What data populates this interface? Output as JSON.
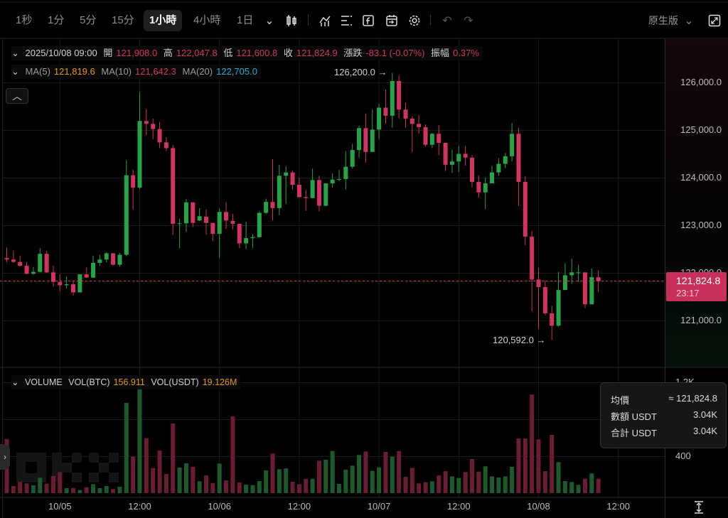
{
  "toolbar": {
    "intervals": [
      "1秒",
      "1分",
      "5分",
      "15分",
      "1小時",
      "4小時",
      "1日"
    ],
    "active_interval": "1小時",
    "version_select": "原生版"
  },
  "legend": {
    "datetime": "2025/10/08 09:00",
    "open_label": "開",
    "open": "121,908.0",
    "high_label": "高",
    "high": "122,047.8",
    "low_label": "低",
    "low": "121,600.8",
    "close_label": "收",
    "close": "121,824.9",
    "change_label": "漲跌",
    "change": "-83.1 (-0.07%)",
    "amp_label": "振幅",
    "amp": "0.37%",
    "ma5_label": "MA(5)",
    "ma5": "121,819.6",
    "ma10_label": "MA(10)",
    "ma10": "121,642.3",
    "ma20_label": "MA(20)",
    "ma20": "122,705.0"
  },
  "volume_legend": {
    "title": "VOLUME",
    "btc_label": "VOL(BTC)",
    "btc": "156.911",
    "usdt_label": "VOL(USDT)",
    "usdt": "19.126M"
  },
  "annotations": {
    "high": "126,200.0 →",
    "low": "120,592.0 →"
  },
  "current_price": {
    "price": "121,824.8",
    "countdown": "23:17"
  },
  "tooltip": {
    "avg_label": "均價",
    "avg": "≈ 121,824.8",
    "amount_label": "數額 USDT",
    "amount": "3.04K",
    "total_label": "合計 USDT",
    "total": "3.04K"
  },
  "colors": {
    "up": "#27a446",
    "down": "#d1355f",
    "vol_up": "#1c5a2c",
    "vol_down": "#6a1c33"
  },
  "chart_data": {
    "type": "candlestick",
    "interval": "1h",
    "start": "2025/10/04 16:00",
    "price_ticks": [
      "121,000.0",
      "122,000.0",
      "123,000.0",
      "124,000.0",
      "125,000.0",
      "126,000.0"
    ],
    "price_tick_values": [
      121000,
      122000,
      123000,
      124000,
      125000,
      126000
    ],
    "volume_ticks": [
      "400",
      "800",
      "1.2K"
    ],
    "volume_tick_values": [
      400,
      800,
      1200
    ],
    "x_ticks": [
      {
        "label": "10/05",
        "index": 8
      },
      {
        "label": "12:00",
        "index": 20
      },
      {
        "label": "10/06",
        "index": 32
      },
      {
        "label": "12:00",
        "index": 44
      },
      {
        "label": "10/07",
        "index": 56
      },
      {
        "label": "12:00",
        "index": 68
      },
      {
        "label": "10/08",
        "index": 80
      },
      {
        "label": "12:00",
        "index": 92
      }
    ],
    "ohlc": [
      [
        122310,
        122530,
        122220,
        122280
      ],
      [
        122280,
        122470,
        122210,
        122230
      ],
      [
        122230,
        122360,
        122130,
        122150
      ],
      [
        122150,
        122230,
        121970,
        121980
      ],
      [
        121980,
        122120,
        121960,
        122020
      ],
      [
        122020,
        122520,
        122010,
        122400
      ],
      [
        122400,
        122460,
        122000,
        122010
      ],
      [
        122010,
        122150,
        121710,
        121810
      ],
      [
        121810,
        121970,
        121610,
        121740
      ],
      [
        121740,
        121920,
        121670,
        121760
      ],
      [
        121760,
        121840,
        121520,
        121590
      ],
      [
        121590,
        121970,
        121590,
        121970
      ],
      [
        121970,
        122110,
        121900,
        121900
      ],
      [
        121900,
        122360,
        121890,
        122210
      ],
      [
        122210,
        122380,
        122150,
        122280
      ],
      [
        122280,
        122430,
        122220,
        122410
      ],
      [
        122410,
        122420,
        122160,
        122170
      ],
      [
        122170,
        122420,
        122130,
        122380
      ],
      [
        122380,
        124370,
        122350,
        124050
      ],
      [
        124050,
        124170,
        123330,
        123790
      ],
      [
        123790,
        125800,
        123760,
        125190
      ],
      [
        125190,
        125440,
        124890,
        125130
      ],
      [
        125130,
        125240,
        124810,
        125020
      ],
      [
        125020,
        125170,
        124620,
        124740
      ],
      [
        124740,
        124850,
        124560,
        124620
      ],
      [
        124620,
        124690,
        122800,
        123030
      ],
      [
        123030,
        123140,
        122520,
        123040
      ],
      [
        123040,
        123550,
        122860,
        123480
      ],
      [
        123480,
        123480,
        122960,
        123050
      ],
      [
        123100,
        123360,
        123090,
        123190
      ],
      [
        123180,
        123330,
        122800,
        123050
      ],
      [
        123050,
        123050,
        122670,
        122820
      ],
      [
        122820,
        123350,
        122310,
        123280
      ],
      [
        123280,
        123480,
        122920,
        123100
      ],
      [
        123090,
        123240,
        122910,
        123030
      ],
      [
        123030,
        123030,
        122520,
        122620
      ],
      [
        122620,
        123080,
        122500,
        122730
      ],
      [
        122730,
        122810,
        122520,
        122750
      ],
      [
        122750,
        123290,
        122740,
        123260
      ],
      [
        123260,
        123560,
        123240,
        123490
      ],
      [
        123490,
        124390,
        123100,
        123360
      ],
      [
        123360,
        124270,
        123210,
        124040
      ],
      [
        124040,
        124240,
        123450,
        124110
      ],
      [
        124110,
        124150,
        123750,
        123850
      ],
      [
        123850,
        124000,
        123580,
        123590
      ],
      [
        123590,
        123750,
        123300,
        123570
      ],
      [
        123570,
        124190,
        123570,
        123950
      ],
      [
        123950,
        124040,
        123290,
        123410
      ],
      [
        123410,
        123880,
        123400,
        123880
      ],
      [
        123880,
        124090,
        123790,
        123960
      ],
      [
        123960,
        124160,
        123930,
        123970
      ],
      [
        123970,
        124560,
        123750,
        124230
      ],
      [
        124230,
        124710,
        124190,
        124580
      ],
      [
        124580,
        125090,
        124420,
        125040
      ],
      [
        125040,
        125350,
        124310,
        124540
      ],
      [
        124540,
        125430,
        124540,
        125010
      ],
      [
        125010,
        125550,
        124810,
        125470
      ],
      [
        125470,
        125850,
        125130,
        125300
      ],
      [
        125300,
        126200,
        125050,
        126030
      ],
      [
        126030,
        126150,
        125250,
        125430
      ],
      [
        125430,
        125570,
        125050,
        125240
      ],
      [
        125240,
        125290,
        124540,
        125130
      ],
      [
        125130,
        125310,
        124920,
        125060
      ],
      [
        125060,
        125120,
        124650,
        124690
      ],
      [
        124690,
        124940,
        124620,
        124920
      ],
      [
        124920,
        125100,
        124470,
        124730
      ],
      [
        124730,
        124730,
        124140,
        124270
      ],
      [
        124270,
        124590,
        124100,
        124340
      ],
      [
        124340,
        124670,
        124120,
        124500
      ],
      [
        124500,
        124660,
        124250,
        124420
      ],
      [
        124420,
        124470,
        123800,
        123910
      ],
      [
        123910,
        124050,
        123580,
        123690
      ],
      [
        123690,
        124000,
        123340,
        123880
      ],
      [
        123880,
        124250,
        123880,
        124110
      ],
      [
        124110,
        124410,
        124040,
        124290
      ],
      [
        124290,
        124520,
        124200,
        124450
      ],
      [
        124450,
        125150,
        124340,
        124920
      ],
      [
        124920,
        125050,
        123400,
        123910
      ],
      [
        123910,
        124030,
        122580,
        122760
      ],
      [
        122760,
        122880,
        121190,
        121860
      ],
      [
        121860,
        122100,
        120830,
        121700
      ],
      [
        121700,
        121840,
        121110,
        121150
      ],
      [
        121150,
        121310,
        120592,
        120890
      ],
      [
        120890,
        122020,
        120870,
        121640
      ],
      [
        121640,
        122200,
        121640,
        121950
      ],
      [
        121950,
        122300,
        121770,
        122010
      ],
      [
        122010,
        122170,
        121810,
        122010
      ],
      [
        122010,
        122010,
        121260,
        121340
      ],
      [
        121340,
        122090,
        121340,
        121910
      ],
      [
        121908.0,
        122047.8,
        121600.8,
        121824.9
      ]
    ],
    "volume": [
      587,
      77,
      120,
      105,
      85,
      167,
      103,
      185,
      228,
      54,
      54,
      33,
      64,
      97,
      54,
      77,
      44,
      69,
      977,
      395,
      1250,
      595,
      272,
      461,
      208,
      754,
      277,
      323,
      285,
      128,
      192,
      110,
      320,
      138,
      831,
      115,
      92,
      87,
      131,
      246,
      428,
      259,
      267,
      123,
      97,
      154,
      156,
      351,
      362,
      456,
      100,
      254,
      297,
      413,
      451,
      241,
      279,
      446,
      395,
      456,
      177,
      274,
      105,
      118,
      128,
      192,
      238,
      182,
      164,
      228,
      369,
      233,
      290,
      182,
      169,
      182,
      285,
      592,
      592,
      1067,
      582,
      238,
      631,
      336,
      131,
      120,
      90,
      156,
      213,
      156.911
    ],
    "current_price": 121824.8,
    "yrange": [
      120300,
      126600
    ]
  }
}
